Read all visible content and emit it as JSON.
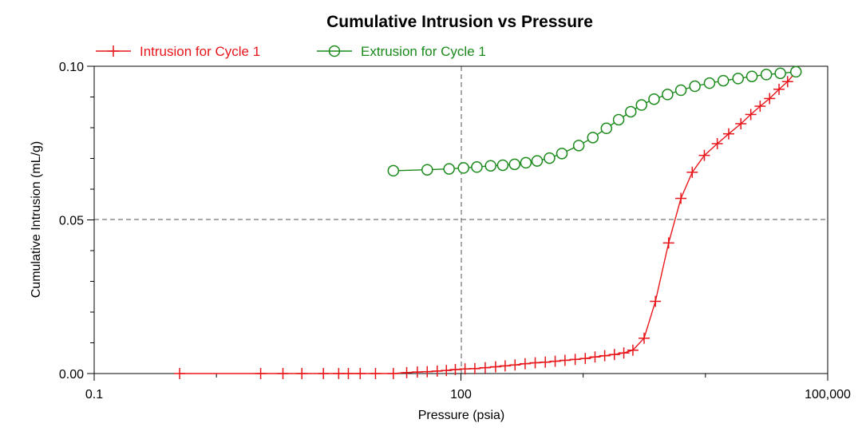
{
  "chart_data": {
    "type": "line",
    "title": "Cumulative Intrusion vs Pressure",
    "xlabel": "Pressure (psia)",
    "ylabel": "Cumulative Intrusion (mL/g)",
    "x_scale": "log",
    "xlim": [
      0.1,
      100000
    ],
    "ylim": [
      0.0,
      0.1
    ],
    "x_ticks": [
      0.1,
      100,
      100000
    ],
    "x_tick_labels": [
      "0.1",
      "100",
      "100,000"
    ],
    "y_ticks": [
      0.0,
      0.05,
      0.1
    ],
    "y_tick_labels": [
      "0.00",
      "0.05",
      "0.10"
    ],
    "grid": "dashed lines at x=100 and y=0.05",
    "legend_position": "top-left",
    "series": [
      {
        "name": "Intrusion for Cycle 1",
        "color": "#e8161b",
        "marker": "plus",
        "points": [
          [
            0.5,
            0.0
          ],
          [
            2.3,
            0.0
          ],
          [
            3.5,
            0.0
          ],
          [
            5.0,
            0.0
          ],
          [
            7.5,
            0.0
          ],
          [
            10,
            0.0
          ],
          [
            12,
            0.0
          ],
          [
            15,
            0.0
          ],
          [
            20,
            0.0
          ],
          [
            28,
            0.0
          ],
          [
            36,
            0.0003
          ],
          [
            44,
            0.0005
          ],
          [
            53,
            0.0006
          ],
          [
            64,
            0.0008
          ],
          [
            76,
            0.001
          ],
          [
            90,
            0.0013
          ],
          [
            108,
            0.0015
          ],
          [
            130,
            0.0016
          ],
          [
            158,
            0.0019
          ],
          [
            192,
            0.0022
          ],
          [
            230,
            0.0025
          ],
          [
            277,
            0.0028
          ],
          [
            335,
            0.0032
          ],
          [
            405,
            0.0035
          ],
          [
            490,
            0.0037
          ],
          [
            590,
            0.004
          ],
          [
            710,
            0.0043
          ],
          [
            860,
            0.0046
          ],
          [
            1040,
            0.0049
          ],
          [
            1250,
            0.0054
          ],
          [
            1500,
            0.0058
          ],
          [
            1800,
            0.0062
          ],
          [
            2150,
            0.0067
          ],
          [
            2550,
            0.0076
          ],
          [
            3150,
            0.0115
          ],
          [
            3900,
            0.0235
          ],
          [
            5000,
            0.0425
          ],
          [
            6300,
            0.057
          ],
          [
            7800,
            0.0655
          ],
          [
            9800,
            0.071
          ],
          [
            12500,
            0.0748
          ],
          [
            15500,
            0.078
          ],
          [
            19500,
            0.0813
          ],
          [
            23500,
            0.0843
          ],
          [
            28000,
            0.087
          ],
          [
            33500,
            0.0895
          ],
          [
            40000,
            0.0925
          ],
          [
            47000,
            0.095
          ],
          [
            55000,
            0.0982
          ]
        ]
      },
      {
        "name": "Extrusion for Cycle 1",
        "color": "#1a8a1a",
        "marker": "circle",
        "points": [
          [
            28,
            0.066
          ],
          [
            53,
            0.0663
          ],
          [
            80,
            0.0666
          ],
          [
            105,
            0.0669
          ],
          [
            135,
            0.0672
          ],
          [
            175,
            0.0676
          ],
          [
            220,
            0.0678
          ],
          [
            275,
            0.0681
          ],
          [
            340,
            0.0686
          ],
          [
            420,
            0.0692
          ],
          [
            530,
            0.0701
          ],
          [
            670,
            0.0716
          ],
          [
            920,
            0.0742
          ],
          [
            1200,
            0.0768
          ],
          [
            1550,
            0.0798
          ],
          [
            1950,
            0.0826
          ],
          [
            2450,
            0.0852
          ],
          [
            3000,
            0.0874
          ],
          [
            3800,
            0.0893
          ],
          [
            4900,
            0.0908
          ],
          [
            6300,
            0.0922
          ],
          [
            8200,
            0.0935
          ],
          [
            10800,
            0.0945
          ],
          [
            14000,
            0.0953
          ],
          [
            18500,
            0.096
          ],
          [
            24000,
            0.0967
          ],
          [
            31500,
            0.0973
          ],
          [
            41000,
            0.0977
          ],
          [
            55000,
            0.0982
          ]
        ]
      }
    ]
  }
}
